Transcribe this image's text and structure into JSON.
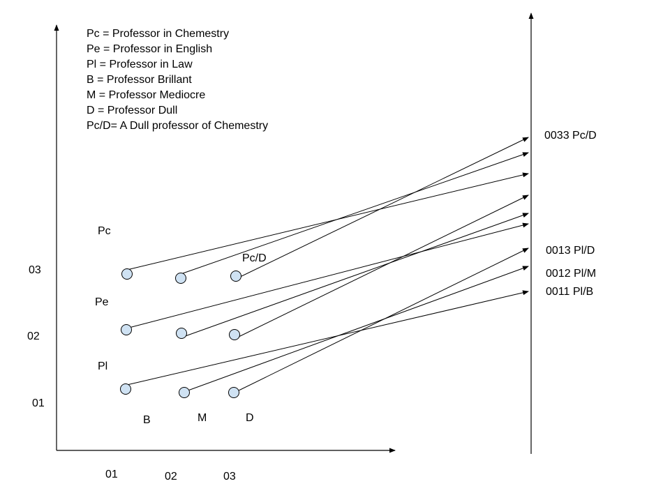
{
  "legend": [
    "Pc = Professor in Chemestry",
    "Pe = Professor in English",
    "Pl = Professor in Law",
    "B = Professor Brillant",
    "M = Professor Mediocre",
    "D = Professor Dull",
    "Pc/D= A Dull professor of Chemestry"
  ],
  "x_ticks": [
    "01",
    "02",
    "03"
  ],
  "y_ticks": [
    "01",
    "02",
    "03"
  ],
  "row_labels": [
    "Pl",
    "Pe",
    "Pc"
  ],
  "column_labels": [
    "B",
    "M",
    "D"
  ],
  "node_label": "Pc/D",
  "target_labels": [
    "0033 Pc/D",
    "0013 Pl/D",
    "0012 Pl/M",
    "0011 Pl/B"
  ],
  "colors": {
    "node_fill": "#cfe2f3",
    "node_stroke": "#000000",
    "line": "#000000"
  }
}
